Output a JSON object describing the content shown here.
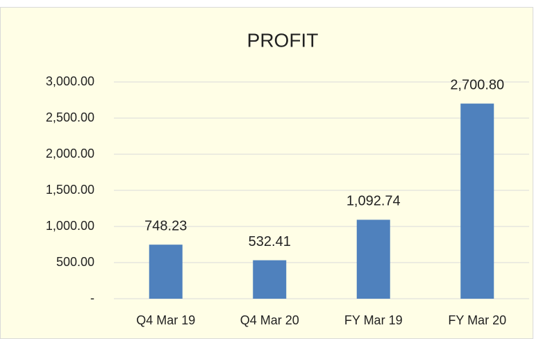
{
  "chart_data": {
    "type": "bar",
    "title": "PROFIT",
    "categories": [
      "Q4 Mar 19",
      "Q4 Mar 20",
      "FY Mar 19",
      "FY Mar 20"
    ],
    "values": [
      748.23,
      532.41,
      1092.74,
      2700.8
    ],
    "value_labels": [
      "748.23",
      "532.41",
      "1,092.74",
      "2,700.80"
    ],
    "color": "#4f81bd",
    "ylim": [
      0,
      3000
    ],
    "yticks": [
      {
        "value": 0,
        "label": "-"
      },
      {
        "value": 500,
        "label": "500.00"
      },
      {
        "value": 1000,
        "label": "1,000.00"
      },
      {
        "value": 1500,
        "label": "1,500.00"
      },
      {
        "value": 2000,
        "label": "2,000.00"
      },
      {
        "value": 2500,
        "label": "2,500.00"
      },
      {
        "value": 3000,
        "label": "3,000.00"
      }
    ],
    "grid": true
  }
}
